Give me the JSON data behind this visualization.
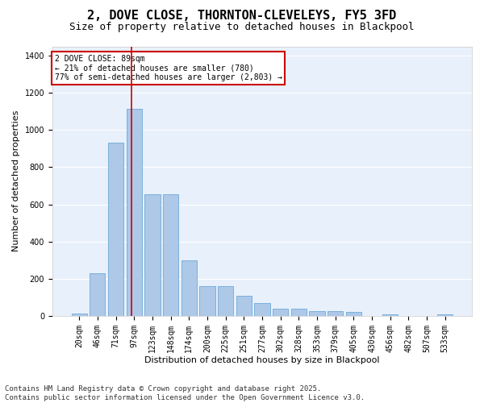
{
  "title": "2, DOVE CLOSE, THORNTON-CLEVELEYS, FY5 3FD",
  "subtitle": "Size of property relative to detached houses in Blackpool",
  "xlabel": "Distribution of detached houses by size in Blackpool",
  "ylabel": "Number of detached properties",
  "bar_values": [
    15,
    230,
    930,
    1115,
    655,
    655,
    300,
    160,
    160,
    110,
    70,
    40,
    40,
    25,
    25,
    20,
    0,
    10,
    0,
    0,
    10
  ],
  "categories": [
    "20sqm",
    "46sqm",
    "71sqm",
    "97sqm",
    "123sqm",
    "148sqm",
    "174sqm",
    "200sqm",
    "225sqm",
    "251sqm",
    "277sqm",
    "302sqm",
    "328sqm",
    "353sqm",
    "379sqm",
    "405sqm",
    "430sqm",
    "456sqm",
    "482sqm",
    "507sqm",
    "533sqm"
  ],
  "bar_color": "#aec8e8",
  "bar_edge_color": "#5a9fd4",
  "bg_color": "#e8f0fb",
  "grid_color": "#ffffff",
  "vline_x": 2.85,
  "vline_color": "#cc0000",
  "annotation_text": "2 DOVE CLOSE: 89sqm\n← 21% of detached houses are smaller (780)\n77% of semi-detached houses are larger (2,803) →",
  "annotation_box_color": "#cc0000",
  "ylim": [
    0,
    1450
  ],
  "yticks": [
    0,
    200,
    400,
    600,
    800,
    1000,
    1200,
    1400
  ],
  "footer_text": "Contains HM Land Registry data © Crown copyright and database right 2025.\nContains public sector information licensed under the Open Government Licence v3.0.",
  "title_fontsize": 11,
  "subtitle_fontsize": 9,
  "label_fontsize": 8,
  "tick_fontsize": 7,
  "footer_fontsize": 6.5
}
